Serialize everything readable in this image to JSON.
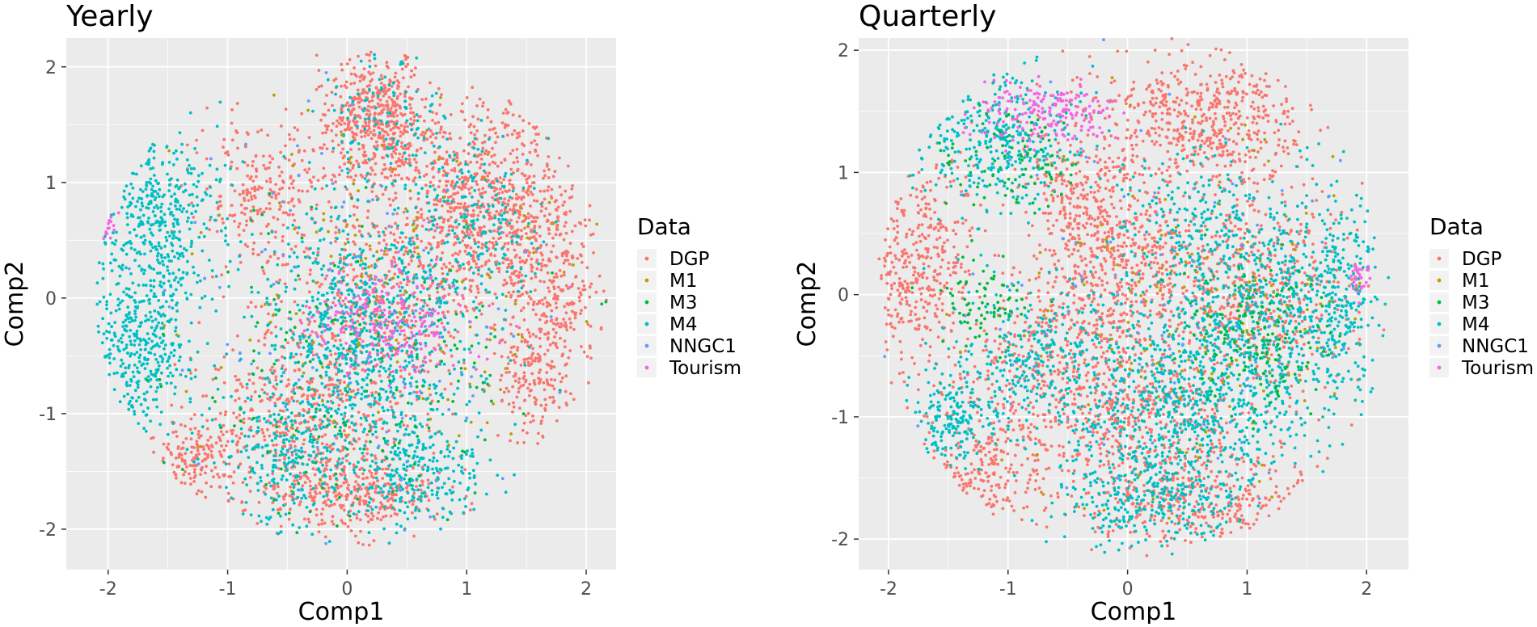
{
  "chart_data": [
    {
      "type": "scatter",
      "title": "Yearly",
      "xlabel": "Comp1",
      "ylabel": "Comp2",
      "xlim": [
        -2.35,
        2.25
      ],
      "ylim": [
        -2.35,
        2.25
      ],
      "x_ticks": [
        -2,
        -1,
        0,
        1,
        2
      ],
      "y_ticks": [
        -2,
        -1,
        0,
        1,
        2
      ],
      "x_tick_labels": [
        "-2",
        "-1",
        "0",
        "1",
        "2"
      ],
      "y_tick_labels": [
        "-2",
        "-1",
        "0",
        "1",
        "2"
      ],
      "grid": true,
      "legend": {
        "title": "Data",
        "placement": "right",
        "entries": [
          "DGP",
          "M1",
          "M3",
          "M4",
          "NNGC1",
          "Tourism"
        ]
      },
      "series": [
        {
          "name": "DGP",
          "color": "#F8766D",
          "clusters": [
            {
              "cx": 0.25,
              "cy": 1.55,
              "sx": 0.22,
              "sy": 0.3,
              "w": 0.15
            },
            {
              "cx": 1.15,
              "cy": 0.85,
              "sx": 0.35,
              "sy": 0.4,
              "w": 0.2
            },
            {
              "cx": 1.7,
              "cy": 0.2,
              "sx": 0.25,
              "sy": 0.4,
              "w": 0.1
            },
            {
              "cx": 1.55,
              "cy": -0.7,
              "sx": 0.15,
              "sy": 0.25,
              "w": 0.05
            },
            {
              "cx": -0.7,
              "cy": 0.9,
              "sx": 0.3,
              "sy": 0.3,
              "w": 0.07
            },
            {
              "cx": -0.3,
              "cy": -1.1,
              "sx": 0.45,
              "sy": 0.5,
              "w": 0.18
            },
            {
              "cx": 0.15,
              "cy": -1.7,
              "sx": 0.35,
              "sy": 0.15,
              "w": 0.07
            },
            {
              "cx": 0.3,
              "cy": 0.0,
              "sx": 0.4,
              "sy": 0.4,
              "w": 0.13
            },
            {
              "cx": -1.3,
              "cy": -1.4,
              "sx": 0.2,
              "sy": 0.2,
              "w": 0.05
            }
          ]
        },
        {
          "name": "M1",
          "color": "#B79F00",
          "clusters": [
            {
              "cx": 0.4,
              "cy": 0.0,
              "sx": 0.8,
              "sy": 0.8,
              "w": 1
            }
          ]
        },
        {
          "name": "M3",
          "color": "#00BA38",
          "clusters": [
            {
              "cx": 0.1,
              "cy": -0.7,
              "sx": 0.8,
              "sy": 0.8,
              "w": 1
            }
          ]
        },
        {
          "name": "M4",
          "color": "#00BFC4",
          "clusters": [
            {
              "cx": -1.6,
              "cy": 0.7,
              "sx": 0.28,
              "sy": 0.38,
              "w": 0.17
            },
            {
              "cx": -1.75,
              "cy": -0.45,
              "sx": 0.22,
              "sy": 0.38,
              "w": 0.15
            },
            {
              "cx": 0.2,
              "cy": -0.4,
              "sx": 0.45,
              "sy": 0.5,
              "w": 0.3
            },
            {
              "cx": 0.6,
              "cy": -1.5,
              "sx": 0.3,
              "sy": 0.25,
              "w": 0.1
            },
            {
              "cx": -0.5,
              "cy": -1.4,
              "sx": 0.3,
              "sy": 0.3,
              "w": 0.1
            },
            {
              "cx": 1.1,
              "cy": 0.6,
              "sx": 0.3,
              "sy": 0.35,
              "w": 0.08
            },
            {
              "cx": 0.3,
              "cy": 1.5,
              "sx": 0.25,
              "sy": 0.3,
              "w": 0.05
            },
            {
              "cx": 0.0,
              "cy": 0.3,
              "sx": 0.4,
              "sy": 0.4,
              "w": 0.05
            }
          ]
        },
        {
          "name": "NNGC1",
          "color": "#619CFF",
          "clusters": [
            {
              "cx": 0.3,
              "cy": -0.2,
              "sx": 0.9,
              "sy": 0.9,
              "w": 1
            }
          ]
        },
        {
          "name": "Tourism",
          "color": "#F564E3",
          "clusters": [
            {
              "cx": 0.35,
              "cy": -0.2,
              "sx": 0.35,
              "sy": 0.25,
              "w": 0.8
            },
            {
              "cx": -2.05,
              "cy": 0.62,
              "sx": 0.05,
              "sy": 0.05,
              "w": 0.2
            }
          ]
        }
      ],
      "point_counts": [
        3500,
        140,
        200,
        2600,
        120,
        260
      ]
    },
    {
      "type": "scatter",
      "title": "Quarterly",
      "xlabel": "Comp1",
      "ylabel": "Comp2",
      "xlim": [
        -2.25,
        2.35
      ],
      "ylim": [
        -2.25,
        2.1
      ],
      "x_ticks": [
        -2,
        -1,
        0,
        1,
        2
      ],
      "y_ticks": [
        -2,
        -1,
        0,
        1,
        2
      ],
      "x_tick_labels": [
        "-2",
        "-1",
        "0",
        "1",
        "2"
      ],
      "y_tick_labels": [
        "-2",
        "-1",
        "0",
        "1",
        "2"
      ],
      "grid": true,
      "legend": {
        "title": "Data",
        "placement": "right",
        "entries": [
          "DGP",
          "M1",
          "M3",
          "M4",
          "NNGC1",
          "Tourism"
        ]
      },
      "series": [
        {
          "name": "DGP",
          "color": "#F8766D",
          "clusters": [
            {
              "cx": -1.75,
              "cy": 0.3,
              "sx": 0.25,
              "sy": 0.45,
              "w": 0.12
            },
            {
              "cx": 0.7,
              "cy": 1.45,
              "sx": 0.45,
              "sy": 0.3,
              "w": 0.16
            },
            {
              "cx": -0.35,
              "cy": 0.8,
              "sx": 0.25,
              "sy": 0.35,
              "w": 0.08
            },
            {
              "cx": 0.0,
              "cy": 0.25,
              "sx": 0.35,
              "sy": 0.3,
              "w": 0.1
            },
            {
              "cx": -0.5,
              "cy": -0.6,
              "sx": 0.4,
              "sy": 0.4,
              "w": 0.14
            },
            {
              "cx": 0.6,
              "cy": -1.7,
              "sx": 0.5,
              "sy": 0.2,
              "w": 0.1
            },
            {
              "cx": 1.1,
              "cy": 0.0,
              "sx": 0.4,
              "sy": 0.45,
              "w": 0.15
            },
            {
              "cx": 0.2,
              "cy": -1.0,
              "sx": 0.35,
              "sy": 0.3,
              "w": 0.08
            },
            {
              "cx": -1.2,
              "cy": -1.4,
              "sx": 0.3,
              "sy": 0.25,
              "w": 0.07
            }
          ]
        },
        {
          "name": "M1",
          "color": "#B79F00",
          "clusters": [
            {
              "cx": 0.6,
              "cy": -0.2,
              "sx": 0.8,
              "sy": 0.8,
              "w": 1
            }
          ]
        },
        {
          "name": "M3",
          "color": "#00BA38",
          "clusters": [
            {
              "cx": 1.05,
              "cy": -0.35,
              "sx": 0.3,
              "sy": 0.3,
              "w": 0.5
            },
            {
              "cx": -1.0,
              "cy": 1.1,
              "sx": 0.3,
              "sy": 0.2,
              "w": 0.3
            },
            {
              "cx": -1.2,
              "cy": -0.1,
              "sx": 0.2,
              "sy": 0.2,
              "w": 0.2
            }
          ]
        },
        {
          "name": "M4",
          "color": "#00BFC4",
          "clusters": [
            {
              "cx": -1.1,
              "cy": 1.3,
              "sx": 0.35,
              "sy": 0.3,
              "w": 0.12
            },
            {
              "cx": -1.45,
              "cy": -1.0,
              "sx": 0.15,
              "sy": 0.2,
              "w": 0.06
            },
            {
              "cx": 0.4,
              "cy": -1.0,
              "sx": 0.5,
              "sy": 0.45,
              "w": 0.22
            },
            {
              "cx": 1.0,
              "cy": -0.2,
              "sx": 0.45,
              "sy": 0.5,
              "w": 0.22
            },
            {
              "cx": 1.75,
              "cy": 0.0,
              "sx": 0.18,
              "sy": 0.4,
              "w": 0.08
            },
            {
              "cx": 0.2,
              "cy": -1.7,
              "sx": 0.35,
              "sy": 0.2,
              "w": 0.08
            },
            {
              "cx": -0.75,
              "cy": -0.5,
              "sx": 0.4,
              "sy": 0.3,
              "w": 0.1
            },
            {
              "cx": 0.5,
              "cy": 0.6,
              "sx": 0.3,
              "sy": 0.3,
              "w": 0.06
            },
            {
              "cx": -2.08,
              "cy": -0.72,
              "sx": 0.04,
              "sy": 0.06,
              "w": 0.02
            }
          ]
        },
        {
          "name": "NNGC1",
          "color": "#619CFF",
          "clusters": [
            {
              "cx": 0.2,
              "cy": -0.3,
              "sx": 1.0,
              "sy": 1.0,
              "w": 1
            }
          ]
        },
        {
          "name": "Tourism",
          "color": "#F564E3",
          "clusters": [
            {
              "cx": -0.7,
              "cy": 1.5,
              "sx": 0.3,
              "sy": 0.12,
              "w": 0.85
            },
            {
              "cx": 1.95,
              "cy": 0.15,
              "sx": 0.05,
              "sy": 0.08,
              "w": 0.15
            }
          ]
        }
      ],
      "point_counts": [
        3600,
        160,
        320,
        3000,
        100,
        220
      ]
    }
  ]
}
